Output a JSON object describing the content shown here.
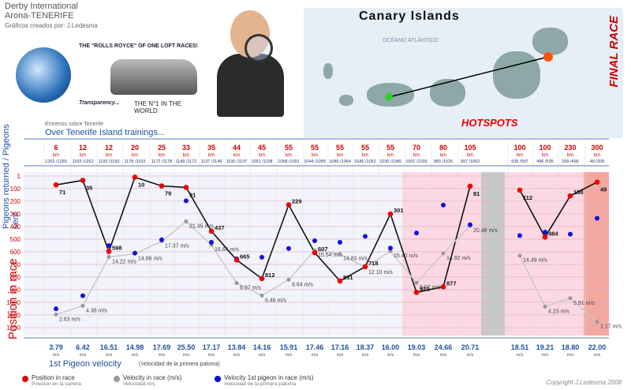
{
  "header": {
    "line1": "Derby International",
    "line2": "Arona-TENERIFE",
    "line3": "Gráficos creados por: J.Ledesma"
  },
  "promo": {
    "headline": "THE \"ROLLS ROYCE\" OF ONE LOFT RACES!",
    "transparency": "Transparency...",
    "nr1": "THE N°1 IN THE WORLD"
  },
  "map": {
    "title": "Canary Islands",
    "ocean": "OCÉANO ATLÁNTICO"
  },
  "final_race": "FINAL RACE",
  "hotspots": "HOTSPOTS",
  "section": {
    "small": "Entrenos sobre Tenerife",
    "title": "Over Tenerife Island trainings..."
  },
  "y_label_top": "Pigeons returned / Pigeons sent",
  "y_label_main": "Position in race",
  "velocity_title": "1st Pigeon velocity",
  "velocity_sub": "(Velocidad de la primera paloma)",
  "legend": [
    {
      "label": "Position in race",
      "sub": "Posicion en la carrera",
      "color": "#e00000"
    },
    {
      "label": "Velocity in race (m/s)",
      "sub": "Velocidad m/s",
      "color": "#999999"
    },
    {
      "label": "Velocity 1st pigeon in race (m/s)",
      "sub": "Velocidad de la primera paloma",
      "color": "#0000dd"
    }
  ],
  "copyright": "Copyright J.Ledesma 2008",
  "chart_data": {
    "type": "line",
    "yticks": [
      1,
      100,
      200,
      300,
      400,
      500,
      600,
      700,
      800,
      900,
      1000,
      1100,
      1200
    ],
    "ylim": [
      1,
      1200
    ],
    "races": [
      {
        "km": "6",
        "ret": "1262 /1265",
        "pos": 71,
        "vel": 2.63,
        "first": 3.79
      },
      {
        "km": "12",
        "ret": "1193 /1262",
        "pos": 35,
        "vel": 4.38,
        "first": 6.42
      },
      {
        "km": "12",
        "ret": "1193 /1193",
        "pos": 598,
        "vel": 14.22,
        "first": 16.51
      },
      {
        "km": "20",
        "ret": "1178 /1193",
        "pos": 10,
        "vel": 14.86,
        "first": 14.98
      },
      {
        "km": "25",
        "ret": "1172 /1178",
        "pos": 79,
        "vel": 17.37,
        "first": 17.69
      },
      {
        "km": "33",
        "ret": "1149 /1172",
        "pos": 91,
        "vel": 21.35,
        "first": 25.5
      },
      {
        "km": "35",
        "ret": "1137 /1149",
        "pos": 437,
        "vel": 16.64,
        "first": 17.17
      },
      {
        "km": "44",
        "ret": "1100 /1137",
        "pos": 665,
        "vel": 8.97,
        "first": 13.84
      },
      {
        "km": "45",
        "ret": "1091 /1108",
        "pos": 812,
        "vel": 6.46,
        "first": 14.16
      },
      {
        "km": "55",
        "ret": "1058 /1091",
        "pos": 229,
        "vel": 9.64,
        "first": 15.91
      },
      {
        "km": "55",
        "ret": "1044 /1058",
        "pos": 607,
        "vel": 15.54,
        "first": 17.46
      },
      {
        "km": "55",
        "ret": "1049 /1064",
        "pos": 831,
        "vel": 14.83,
        "first": 17.16
      },
      {
        "km": "55",
        "ret": "1045 /1052",
        "pos": 718,
        "vel": 12.1,
        "first": 18.37
      },
      {
        "km": "55",
        "ret": "1030 /1045",
        "pos": 301,
        "vel": 15.4,
        "first": 16.0
      },
      {
        "km": "70",
        "ret": "1001 /1035",
        "pos": 921,
        "vel": 9.02,
        "first": 19.03
      },
      {
        "km": "80",
        "ret": "983 /1026",
        "pos": 877,
        "vel": 14.92,
        "first": 24.66
      },
      {
        "km": "105",
        "ret": "997 /1002",
        "pos": 81,
        "vel": 20.48,
        "first": 20.71
      },
      {
        "km": "100",
        "ret": "535 /997",
        "pos": 112,
        "vel": 14.49,
        "first": 18.51
      },
      {
        "km": "100",
        "ret": "496 /535",
        "pos": 484,
        "vel": 4.23,
        "first": 19.21
      },
      {
        "km": "230",
        "ret": "209 /496",
        "pos": 158,
        "vel": 5.91,
        "first": 18.8
      },
      {
        "km": "300",
        "ret": "49 /208",
        "pos": 49,
        "vel": 1.17,
        "first": 22.0
      }
    ],
    "vel_labels": [
      "2.63 m/s",
      "4.38 m/s",
      "14.22 m/s",
      "14.86 m/s",
      "17.37 m/s",
      "21.35 m/s",
      "16.64 m/s",
      "8.97 m/s",
      "6.46 m/s",
      "9.64 m/s",
      "15.54 m/s",
      "14.83 m/s",
      "12.10 m/s",
      "15.40 m/s",
      "9.02 m/s",
      "14.92 m/s",
      "20.48 m/s",
      "14.49 m/s",
      "4.23 m/s",
      "5.91 m/s",
      "1.17 m/s"
    ]
  }
}
